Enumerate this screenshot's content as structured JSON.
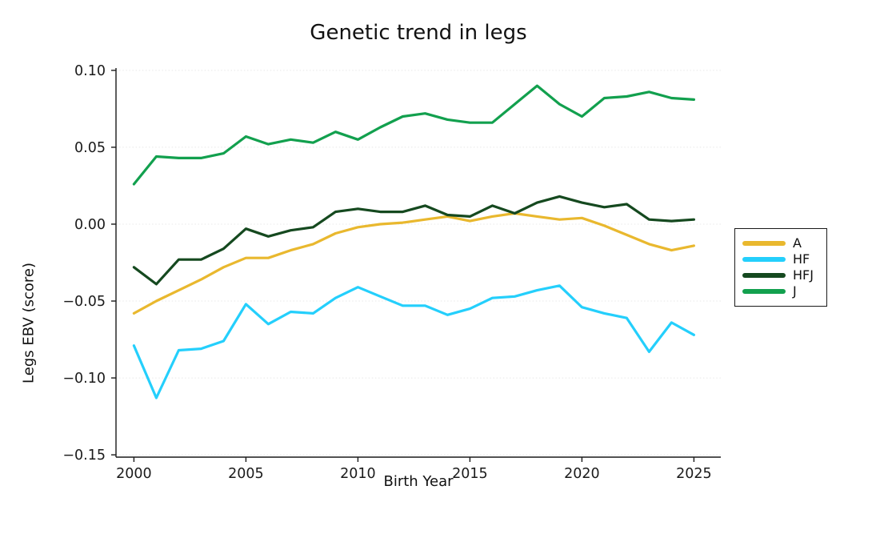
{
  "chart_data": {
    "type": "line",
    "title": "Genetic trend in legs",
    "xlabel": "Birth Year",
    "ylabel": "Legs EBV (score)",
    "x": [
      2000,
      2001,
      2002,
      2003,
      2004,
      2005,
      2006,
      2007,
      2008,
      2009,
      2010,
      2011,
      2012,
      2013,
      2014,
      2015,
      2016,
      2017,
      2018,
      2019,
      2020,
      2021,
      2022,
      2023,
      2024,
      2025
    ],
    "series": [
      {
        "name": "A",
        "color": "#E9B82E",
        "values": [
          -0.058,
          -0.05,
          -0.043,
          -0.036,
          -0.028,
          -0.022,
          -0.022,
          -0.017,
          -0.013,
          -0.006,
          -0.002,
          0.0,
          0.001,
          0.003,
          0.005,
          0.002,
          0.005,
          0.007,
          0.005,
          0.003,
          0.004,
          -0.001,
          -0.007,
          -0.013,
          -0.017,
          -0.014
        ]
      },
      {
        "name": "HF",
        "color": "#24CFFC",
        "values": [
          -0.079,
          -0.113,
          -0.082,
          -0.081,
          -0.076,
          -0.052,
          -0.065,
          -0.057,
          -0.058,
          -0.048,
          -0.041,
          -0.047,
          -0.053,
          -0.053,
          -0.059,
          -0.055,
          -0.048,
          -0.047,
          -0.043,
          -0.04,
          -0.054,
          -0.058,
          -0.061,
          -0.083,
          -0.064,
          -0.072
        ]
      },
      {
        "name": "HFJ",
        "color": "#15491F",
        "values": [
          -0.028,
          -0.039,
          -0.023,
          -0.023,
          -0.016,
          -0.003,
          -0.008,
          -0.004,
          -0.002,
          0.008,
          0.01,
          0.008,
          0.008,
          0.012,
          0.006,
          0.005,
          0.012,
          0.007,
          0.014,
          0.018,
          0.014,
          0.011,
          0.013,
          0.003,
          0.002,
          0.003
        ]
      },
      {
        "name": "J",
        "color": "#12A04E",
        "values": [
          0.026,
          0.044,
          0.043,
          0.043,
          0.046,
          0.057,
          0.052,
          0.055,
          0.053,
          0.06,
          0.055,
          0.063,
          0.07,
          0.072,
          0.068,
          0.066,
          0.066,
          0.078,
          0.09,
          0.078,
          0.07,
          0.082,
          0.083,
          0.086,
          0.082,
          0.081
        ]
      }
    ],
    "xticks": [
      {
        "v": 2000,
        "label": "2000"
      },
      {
        "v": 2005,
        "label": "2005"
      },
      {
        "v": 2010,
        "label": "2010"
      },
      {
        "v": 2015,
        "label": "2015"
      },
      {
        "v": 2020,
        "label": "2020"
      },
      {
        "v": 2025,
        "label": "2025"
      }
    ],
    "yticks": [
      {
        "v": 0.1,
        "label": "0.10"
      },
      {
        "v": 0.05,
        "label": "0.05"
      },
      {
        "v": 0.0,
        "label": "0.00"
      },
      {
        "v": -0.05,
        "label": "−0.05"
      },
      {
        "v": -0.1,
        "label": "−0.10"
      },
      {
        "v": -0.15,
        "label": "−0.15"
      }
    ],
    "xlim": [
      1999.2,
      2026.2
    ],
    "ylim": [
      -0.1515,
      0.1015
    ],
    "grid": "horizontal-dotted",
    "legend_position": "right",
    "legend_entries": [
      "A",
      "HF",
      "HFJ",
      "J"
    ],
    "background_color": "#ffffff",
    "axis_color": "#1a1a1a"
  }
}
